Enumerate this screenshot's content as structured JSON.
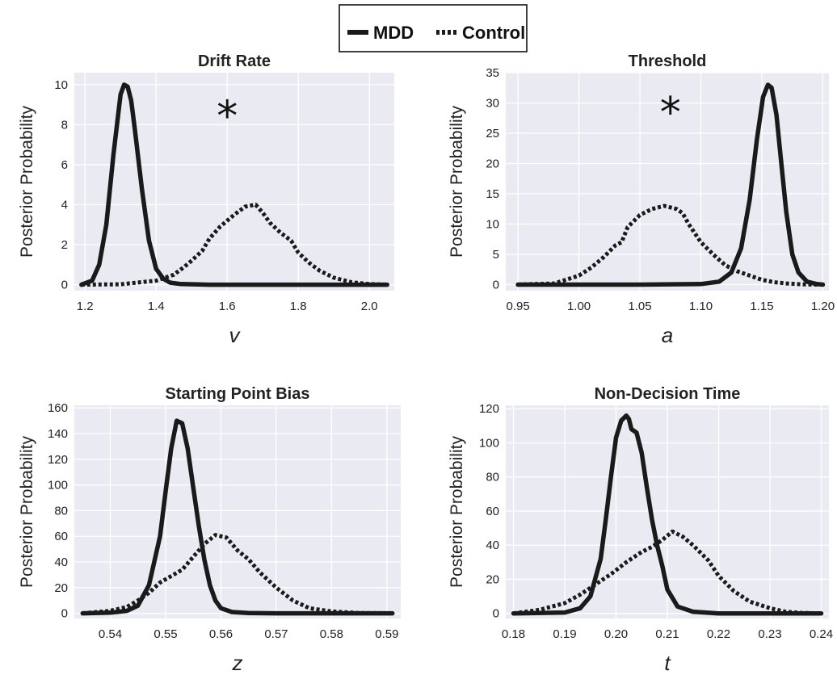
{
  "legend": {
    "entries": [
      {
        "label": "MDD",
        "style": "solid"
      },
      {
        "label": "Control",
        "style": "dotted"
      }
    ]
  },
  "colors": {
    "panel_bg": "#eaeaf2",
    "grid": "#ffffff",
    "line": "#1a1a1a"
  },
  "chart_data": [
    {
      "type": "line",
      "title": "Drift Rate",
      "xlabel": "v",
      "ylabel": "Posterior Probability",
      "xlim": [
        1.17,
        2.07
      ],
      "ylim": [
        -0.3,
        10.6
      ],
      "xticks": [
        1.2,
        1.4,
        1.6,
        1.8,
        2.0
      ],
      "yticks": [
        0,
        2,
        4,
        6,
        8,
        10
      ],
      "xtick_decimals": 1,
      "grid": true,
      "annotation": {
        "text": "*",
        "x": 1.6,
        "y": 8.6
      },
      "series": [
        {
          "name": "MDD",
          "style": "solid",
          "x": [
            1.19,
            1.22,
            1.24,
            1.26,
            1.28,
            1.3,
            1.31,
            1.32,
            1.33,
            1.34,
            1.36,
            1.38,
            1.4,
            1.42,
            1.44,
            1.47,
            1.55,
            1.7,
            1.9,
            2.05
          ],
          "y": [
            0,
            0.2,
            1.0,
            3.0,
            6.5,
            9.5,
            10.0,
            9.9,
            9.2,
            7.8,
            4.8,
            2.2,
            0.8,
            0.3,
            0.1,
            0.03,
            0,
            0,
            0,
            0
          ]
        },
        {
          "name": "Control",
          "style": "dotted",
          "x": [
            1.19,
            1.3,
            1.4,
            1.45,
            1.48,
            1.5,
            1.53,
            1.55,
            1.58,
            1.62,
            1.65,
            1.68,
            1.7,
            1.72,
            1.75,
            1.78,
            1.8,
            1.83,
            1.86,
            1.9,
            1.95,
            2.0,
            2.05
          ],
          "y": [
            0,
            0.02,
            0.2,
            0.5,
            0.9,
            1.2,
            1.7,
            2.3,
            2.9,
            3.5,
            3.9,
            4.0,
            3.6,
            3.1,
            2.6,
            2.2,
            1.6,
            1.1,
            0.7,
            0.35,
            0.12,
            0.03,
            0
          ]
        }
      ]
    },
    {
      "type": "line",
      "title": "Threshold",
      "xlabel": "a",
      "ylabel": "Posterior Probability",
      "xlim": [
        0.94,
        1.205
      ],
      "ylim": [
        -1.0,
        35.0
      ],
      "xticks": [
        0.95,
        1.0,
        1.05,
        1.1,
        1.15,
        1.2
      ],
      "yticks": [
        0,
        5,
        10,
        15,
        20,
        25,
        30,
        35
      ],
      "xtick_decimals": 2,
      "grid": true,
      "annotation": {
        "text": "*",
        "x": 1.075,
        "y": 29
      },
      "series": [
        {
          "name": "MDD",
          "style": "solid",
          "x": [
            0.95,
            1.05,
            1.1,
            1.115,
            1.125,
            1.133,
            1.14,
            1.146,
            1.151,
            1.155,
            1.158,
            1.162,
            1.166,
            1.17,
            1.175,
            1.18,
            1.187,
            1.195,
            1.2
          ],
          "y": [
            0,
            0,
            0.1,
            0.5,
            2.0,
            6.0,
            14.0,
            24.0,
            31.0,
            33.0,
            32.5,
            28.0,
            20.0,
            12.0,
            5.0,
            2.0,
            0.5,
            0.1,
            0
          ]
        },
        {
          "name": "Control",
          "style": "dotted",
          "x": [
            0.95,
            0.98,
            1.0,
            1.01,
            1.02,
            1.03,
            1.035,
            1.04,
            1.05,
            1.06,
            1.07,
            1.08,
            1.085,
            1.09,
            1.1,
            1.11,
            1.12,
            1.13,
            1.14,
            1.15,
            1.16,
            1.17,
            1.18,
            1.19,
            1.2
          ],
          "y": [
            0,
            0.2,
            1.5,
            2.8,
            4.5,
            6.5,
            7.0,
            9.5,
            11.5,
            12.5,
            13.0,
            12.5,
            11.8,
            10.0,
            7.0,
            5.0,
            3.2,
            2.2,
            1.5,
            0.8,
            0.4,
            0.2,
            0.08,
            0.02,
            0
          ]
        }
      ]
    },
    {
      "type": "line",
      "title": "Starting Point Bias",
      "xlabel": "z",
      "ylabel": "Posterior Probability",
      "xlim": [
        0.5335,
        0.5925
      ],
      "ylim": [
        -4.0,
        162.0
      ],
      "xticks": [
        0.54,
        0.55,
        0.56,
        0.57,
        0.58,
        0.59
      ],
      "yticks": [
        0,
        20,
        40,
        60,
        80,
        100,
        120,
        140,
        160
      ],
      "xtick_decimals": 2,
      "grid": true,
      "series": [
        {
          "name": "MDD",
          "style": "solid",
          "x": [
            0.535,
            0.54,
            0.543,
            0.545,
            0.547,
            0.549,
            0.55,
            0.551,
            0.552,
            0.553,
            0.554,
            0.555,
            0.556,
            0.557,
            0.558,
            0.559,
            0.56,
            0.562,
            0.565,
            0.57,
            0.591
          ],
          "y": [
            0,
            0.5,
            2.0,
            6.0,
            22.0,
            60.0,
            95.0,
            128.0,
            150.0,
            148.0,
            128.0,
            98.0,
            68.0,
            42.0,
            22.0,
            10.0,
            4.0,
            1.0,
            0.3,
            0,
            0
          ]
        },
        {
          "name": "Control",
          "style": "dotted",
          "x": [
            0.535,
            0.54,
            0.543,
            0.545,
            0.547,
            0.549,
            0.551,
            0.553,
            0.555,
            0.557,
            0.559,
            0.561,
            0.563,
            0.565,
            0.567,
            0.57,
            0.573,
            0.576,
            0.58,
            0.585,
            0.591
          ],
          "y": [
            0,
            2.0,
            5.0,
            10.0,
            16.0,
            24.0,
            29.0,
            34.0,
            44.0,
            54.0,
            61.0,
            59.0,
            49.0,
            42.0,
            32.0,
            20.0,
            10.0,
            4.0,
            1.5,
            0.3,
            0
          ]
        }
      ]
    },
    {
      "type": "line",
      "title": "Non-Decision Time",
      "xlabel": "t",
      "ylabel": "Posterior Probability",
      "xlim": [
        0.1785,
        0.2415
      ],
      "ylim": [
        -3.0,
        122.0
      ],
      "xticks": [
        0.18,
        0.19,
        0.2,
        0.21,
        0.22,
        0.23,
        0.24
      ],
      "yticks": [
        0,
        20,
        40,
        60,
        80,
        100,
        120
      ],
      "xtick_decimals": 2,
      "grid": true,
      "series": [
        {
          "name": "MDD",
          "style": "solid",
          "x": [
            0.18,
            0.19,
            0.193,
            0.195,
            0.197,
            0.198,
            0.199,
            0.2,
            0.201,
            0.202,
            0.2025,
            0.203,
            0.204,
            0.205,
            0.206,
            0.207,
            0.208,
            0.209,
            0.21,
            0.212,
            0.215,
            0.22,
            0.24
          ],
          "y": [
            0,
            0.5,
            3.0,
            10.0,
            32.0,
            55.0,
            80.0,
            103.0,
            113.0,
            116.0,
            114.0,
            108.0,
            106.0,
            94.0,
            74.0,
            55.0,
            40.0,
            28.0,
            14.0,
            4.0,
            1.0,
            0,
            0
          ]
        },
        {
          "name": "Control",
          "style": "dotted",
          "x": [
            0.18,
            0.185,
            0.19,
            0.193,
            0.196,
            0.199,
            0.202,
            0.205,
            0.207,
            0.209,
            0.211,
            0.213,
            0.215,
            0.218,
            0.22,
            0.223,
            0.226,
            0.23,
            0.233,
            0.236,
            0.24
          ],
          "y": [
            0,
            2.0,
            6.0,
            11.0,
            17.0,
            23.0,
            30.0,
            36.0,
            39.0,
            43.0,
            48.0,
            45.0,
            40.0,
            31.0,
            22.0,
            13.0,
            7.0,
            3.0,
            1.0,
            0.3,
            0
          ]
        }
      ]
    }
  ]
}
